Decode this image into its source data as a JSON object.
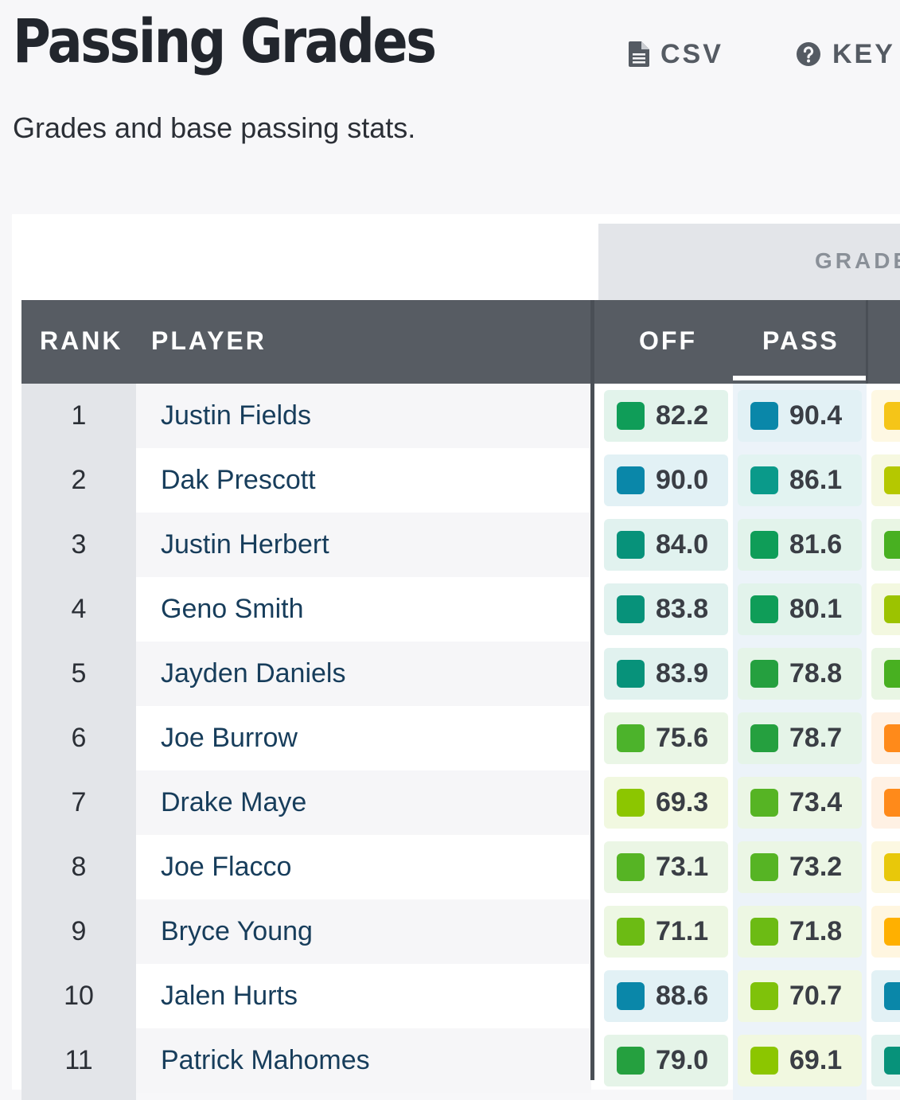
{
  "page": {
    "title": "Passing Grades",
    "subtitle": "Grades and base passing stats.",
    "csv_label": "CSV",
    "key_label": "KEY"
  },
  "table": {
    "group_label": "GRADE",
    "columns": {
      "rank": "RANK",
      "player": "PLAYER",
      "off": "OFF",
      "pass": "PASS"
    },
    "rows": [
      {
        "rank": "1",
        "player": "Justin Fields",
        "off": "82.2",
        "pass": "90.4",
        "off_color": "#0f9d58",
        "pass_color": "#0a87a9",
        "next_color": "#f5c518"
      },
      {
        "rank": "2",
        "player": "Dak Prescott",
        "off": "90.0",
        "pass": "86.1",
        "off_color": "#0a87a9",
        "pass_color": "#0a9a8a",
        "next_color": "#b5c800"
      },
      {
        "rank": "3",
        "player": "Justin Herbert",
        "off": "84.0",
        "pass": "81.6",
        "off_color": "#07927a",
        "pass_color": "#0f9d58",
        "next_color": "#48b021"
      },
      {
        "rank": "4",
        "player": "Geno Smith",
        "off": "83.8",
        "pass": "80.1",
        "off_color": "#07927a",
        "pass_color": "#0f9d58",
        "next_color": "#9cc300"
      },
      {
        "rank": "5",
        "player": "Jayden Daniels",
        "off": "83.9",
        "pass": "78.8",
        "off_color": "#07927a",
        "pass_color": "#25a03f",
        "next_color": "#48b021"
      },
      {
        "rank": "6",
        "player": "Joe Burrow",
        "off": "75.6",
        "pass": "78.7",
        "off_color": "#4cb32b",
        "pass_color": "#25a03f",
        "next_color": "#ff8a1a"
      },
      {
        "rank": "7",
        "player": "Drake Maye",
        "off": "69.3",
        "pass": "73.4",
        "off_color": "#8cc600",
        "pass_color": "#56b424",
        "next_color": "#ff8a1a"
      },
      {
        "rank": "8",
        "player": "Joe Flacco",
        "off": "73.1",
        "pass": "73.2",
        "off_color": "#56b424",
        "pass_color": "#56b424",
        "next_color": "#e8c80a"
      },
      {
        "rank": "9",
        "player": "Bryce Young",
        "off": "71.1",
        "pass": "71.8",
        "off_color": "#6cbb14",
        "pass_color": "#6cbb14",
        "next_color": "#ffb000"
      },
      {
        "rank": "10",
        "player": "Jalen Hurts",
        "off": "88.6",
        "pass": "70.7",
        "off_color": "#0a87a9",
        "pass_color": "#7fc20a",
        "next_color": "#0a87a9"
      },
      {
        "rank": "11",
        "player": "Patrick Mahomes",
        "off": "79.0",
        "pass": "69.1",
        "off_color": "#25a03f",
        "pass_color": "#8cc600",
        "next_color": "#07927a"
      }
    ]
  }
}
